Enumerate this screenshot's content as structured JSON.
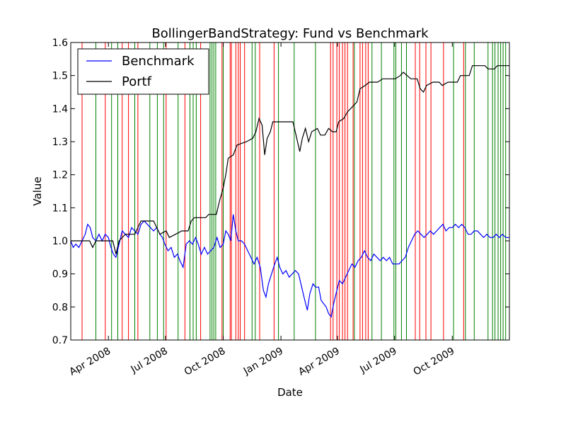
{
  "chart_data": {
    "type": "line",
    "title": "BollingerBandStrategy: Fund vs Benchmark",
    "xlabel": "Date",
    "ylabel": "Value",
    "xlim": [
      "2008-02-01",
      "2009-12-31"
    ],
    "ylim": [
      0.7,
      1.6
    ],
    "grid": false,
    "legend": {
      "placement": "top-left"
    },
    "x_tick_labels": [
      {
        "date": "2008-04-01",
        "label": "Apr 2008"
      },
      {
        "date": "2008-07-01",
        "label": "Jul 2008"
      },
      {
        "date": "2008-10-01",
        "label": "Oct 2008"
      },
      {
        "date": "2009-01-01",
        "label": "Jan 2009"
      },
      {
        "date": "2009-04-01",
        "label": "Apr 2009"
      },
      {
        "date": "2009-07-01",
        "label": "Jul 2009"
      },
      {
        "date": "2009-10-01",
        "label": "Oct 2009"
      }
    ],
    "y_tick_labels": [
      "0.7",
      "0.8",
      "0.9",
      "1.0",
      "1.1",
      "1.2",
      "1.3",
      "1.4",
      "1.5",
      "1.6"
    ],
    "series": [
      {
        "name": "Benchmark",
        "color": "#0000ff",
        "points": [
          [
            "2008-02-01",
            1.0
          ],
          [
            "2008-02-05",
            0.98
          ],
          [
            "2008-02-09",
            0.99
          ],
          [
            "2008-02-14",
            0.98
          ],
          [
            "2008-02-19",
            1.0
          ],
          [
            "2008-02-24",
            1.02
          ],
          [
            "2008-02-28",
            1.05
          ],
          [
            "2008-03-03",
            1.04
          ],
          [
            "2008-03-07",
            1.01
          ],
          [
            "2008-03-12",
            1.0
          ],
          [
            "2008-03-17",
            1.02
          ],
          [
            "2008-03-22",
            1.0
          ],
          [
            "2008-03-27",
            1.02
          ],
          [
            "2008-04-01",
            1.01
          ],
          [
            "2008-04-05",
            0.98
          ],
          [
            "2008-04-09",
            0.96
          ],
          [
            "2008-04-13",
            0.95
          ],
          [
            "2008-04-18",
            0.99
          ],
          [
            "2008-04-23",
            1.03
          ],
          [
            "2008-04-28",
            1.02
          ],
          [
            "2008-05-03",
            1.01
          ],
          [
            "2008-05-08",
            1.04
          ],
          [
            "2008-05-13",
            1.03
          ],
          [
            "2008-05-18",
            1.02
          ],
          [
            "2008-05-23",
            1.05
          ],
          [
            "2008-05-28",
            1.06
          ],
          [
            "2008-06-02",
            1.05
          ],
          [
            "2008-06-07",
            1.04
          ],
          [
            "2008-06-12",
            1.03
          ],
          [
            "2008-06-17",
            1.04
          ],
          [
            "2008-06-22",
            1.02
          ],
          [
            "2008-06-26",
            1.01
          ],
          [
            "2008-06-30",
            0.99
          ],
          [
            "2008-07-05",
            0.97
          ],
          [
            "2008-07-10",
            0.98
          ],
          [
            "2008-07-15",
            0.95
          ],
          [
            "2008-07-20",
            0.96
          ],
          [
            "2008-07-24",
            0.94
          ],
          [
            "2008-07-29",
            0.92
          ],
          [
            "2008-08-03",
            0.99
          ],
          [
            "2008-08-08",
            1.0
          ],
          [
            "2008-08-13",
            0.99
          ],
          [
            "2008-08-18",
            1.01
          ],
          [
            "2008-08-22",
            0.99
          ],
          [
            "2008-08-27",
            0.96
          ],
          [
            "2008-09-01",
            0.98
          ],
          [
            "2008-09-06",
            0.96
          ],
          [
            "2008-09-11",
            0.97
          ],
          [
            "2008-09-16",
            0.98
          ],
          [
            "2008-09-21",
            1.01
          ],
          [
            "2008-09-26",
            0.98
          ],
          [
            "2008-10-01",
            0.99
          ],
          [
            "2008-10-05",
            1.03
          ],
          [
            "2008-10-09",
            1.02
          ],
          [
            "2008-10-13",
            1.0
          ],
          [
            "2008-10-17",
            1.08
          ],
          [
            "2008-10-21",
            1.03
          ],
          [
            "2008-10-25",
            1.0
          ],
          [
            "2008-10-30",
            1.0
          ],
          [
            "2008-11-04",
            0.99
          ],
          [
            "2008-11-09",
            0.97
          ],
          [
            "2008-11-14",
            0.95
          ],
          [
            "2008-11-19",
            0.93
          ],
          [
            "2008-11-24",
            0.95
          ],
          [
            "2008-11-29",
            0.92
          ],
          [
            "2008-12-04",
            0.85
          ],
          [
            "2008-12-08",
            0.83
          ],
          [
            "2008-12-12",
            0.87
          ],
          [
            "2008-12-17",
            0.9
          ],
          [
            "2008-12-22",
            0.93
          ],
          [
            "2008-12-26",
            0.95
          ],
          [
            "2008-12-30",
            0.92
          ],
          [
            "2009-01-04",
            0.9
          ],
          [
            "2009-01-09",
            0.91
          ],
          [
            "2009-01-14",
            0.89
          ],
          [
            "2009-01-19",
            0.9
          ],
          [
            "2009-01-24",
            0.91
          ],
          [
            "2009-01-29",
            0.9
          ],
          [
            "2009-02-03",
            0.86
          ],
          [
            "2009-02-08",
            0.82
          ],
          [
            "2009-02-12",
            0.79
          ],
          [
            "2009-02-16",
            0.84
          ],
          [
            "2009-02-21",
            0.87
          ],
          [
            "2009-02-25",
            0.86
          ],
          [
            "2009-03-02",
            0.86
          ],
          [
            "2009-03-06",
            0.82
          ],
          [
            "2009-03-10",
            0.81
          ],
          [
            "2009-03-14",
            0.8
          ],
          [
            "2009-03-18",
            0.78
          ],
          [
            "2009-03-22",
            0.77
          ],
          [
            "2009-03-26",
            0.81
          ],
          [
            "2009-03-31",
            0.85
          ],
          [
            "2009-04-04",
            0.88
          ],
          [
            "2009-04-09",
            0.87
          ],
          [
            "2009-04-14",
            0.89
          ],
          [
            "2009-04-19",
            0.91
          ],
          [
            "2009-04-24",
            0.93
          ],
          [
            "2009-04-29",
            0.92
          ],
          [
            "2009-05-04",
            0.94
          ],
          [
            "2009-05-09",
            0.95
          ],
          [
            "2009-05-14",
            0.97
          ],
          [
            "2009-05-19",
            0.95
          ],
          [
            "2009-05-24",
            0.94
          ],
          [
            "2009-05-29",
            0.96
          ],
          [
            "2009-06-03",
            0.95
          ],
          [
            "2009-06-08",
            0.94
          ],
          [
            "2009-06-13",
            0.95
          ],
          [
            "2009-06-18",
            0.94
          ],
          [
            "2009-06-23",
            0.95
          ],
          [
            "2009-06-28",
            0.93
          ],
          [
            "2009-07-03",
            0.93
          ],
          [
            "2009-07-08",
            0.93
          ],
          [
            "2009-07-13",
            0.94
          ],
          [
            "2009-07-18",
            0.95
          ],
          [
            "2009-07-23",
            0.98
          ],
          [
            "2009-07-28",
            1.0
          ],
          [
            "2009-08-02",
            1.02
          ],
          [
            "2009-08-07",
            1.03
          ],
          [
            "2009-08-12",
            1.02
          ],
          [
            "2009-08-17",
            1.01
          ],
          [
            "2009-08-22",
            1.02
          ],
          [
            "2009-08-27",
            1.03
          ],
          [
            "2009-09-01",
            1.02
          ],
          [
            "2009-09-06",
            1.03
          ],
          [
            "2009-09-11",
            1.04
          ],
          [
            "2009-09-16",
            1.05
          ],
          [
            "2009-09-21",
            1.03
          ],
          [
            "2009-09-26",
            1.04
          ],
          [
            "2009-10-01",
            1.04
          ],
          [
            "2009-10-06",
            1.05
          ],
          [
            "2009-10-11",
            1.04
          ],
          [
            "2009-10-16",
            1.05
          ],
          [
            "2009-10-21",
            1.04
          ],
          [
            "2009-10-26",
            1.02
          ],
          [
            "2009-10-31",
            1.02
          ],
          [
            "2009-11-05",
            1.03
          ],
          [
            "2009-11-10",
            1.03
          ],
          [
            "2009-11-15",
            1.02
          ],
          [
            "2009-11-20",
            1.01
          ],
          [
            "2009-11-25",
            1.02
          ],
          [
            "2009-11-30",
            1.01
          ],
          [
            "2009-12-05",
            1.01
          ],
          [
            "2009-12-10",
            1.02
          ],
          [
            "2009-12-15",
            1.01
          ],
          [
            "2009-12-20",
            1.02
          ],
          [
            "2009-12-25",
            1.01
          ],
          [
            "2009-12-31",
            1.01
          ]
        ]
      },
      {
        "name": "Portf",
        "color": "#000000",
        "points": [
          [
            "2008-02-01",
            1.0
          ],
          [
            "2008-03-02",
            1.0
          ],
          [
            "2008-03-07",
            0.98
          ],
          [
            "2008-03-12",
            1.0
          ],
          [
            "2008-04-08",
            1.0
          ],
          [
            "2008-04-13",
            0.96
          ],
          [
            "2008-04-18",
            1.0
          ],
          [
            "2008-04-28",
            1.02
          ],
          [
            "2008-05-13",
            1.02
          ],
          [
            "2008-05-18",
            1.04
          ],
          [
            "2008-05-23",
            1.06
          ],
          [
            "2008-06-12",
            1.06
          ],
          [
            "2008-06-17",
            1.04
          ],
          [
            "2008-06-22",
            1.02
          ],
          [
            "2008-07-02",
            1.03
          ],
          [
            "2008-07-07",
            1.01
          ],
          [
            "2008-07-17",
            1.02
          ],
          [
            "2008-07-27",
            1.03
          ],
          [
            "2008-08-06",
            1.03
          ],
          [
            "2008-08-11",
            1.06
          ],
          [
            "2008-08-16",
            1.07
          ],
          [
            "2008-09-03",
            1.07
          ],
          [
            "2008-09-08",
            1.08
          ],
          [
            "2008-09-20",
            1.08
          ],
          [
            "2008-09-25",
            1.12
          ],
          [
            "2008-10-01",
            1.16
          ],
          [
            "2008-10-05",
            1.2
          ],
          [
            "2008-10-09",
            1.25
          ],
          [
            "2008-10-17",
            1.26
          ],
          [
            "2008-10-23",
            1.29
          ],
          [
            "2008-11-07",
            1.3
          ],
          [
            "2008-11-17",
            1.31
          ],
          [
            "2008-11-22",
            1.33
          ],
          [
            "2008-11-27",
            1.37
          ],
          [
            "2008-12-02",
            1.35
          ],
          [
            "2008-12-06",
            1.26
          ],
          [
            "2008-12-10",
            1.31
          ],
          [
            "2008-12-15",
            1.33
          ],
          [
            "2008-12-19",
            1.36
          ],
          [
            "2009-01-20",
            1.36
          ],
          [
            "2009-01-25",
            1.32
          ],
          [
            "2009-01-31",
            1.27
          ],
          [
            "2009-02-04",
            1.31
          ],
          [
            "2009-02-09",
            1.34
          ],
          [
            "2009-02-14",
            1.3
          ],
          [
            "2009-02-19",
            1.33
          ],
          [
            "2009-02-28",
            1.34
          ],
          [
            "2009-03-05",
            1.32
          ],
          [
            "2009-03-12",
            1.32
          ],
          [
            "2009-03-18",
            1.34
          ],
          [
            "2009-03-24",
            1.33
          ],
          [
            "2009-03-30",
            1.33
          ],
          [
            "2009-04-03",
            1.36
          ],
          [
            "2009-04-11",
            1.37
          ],
          [
            "2009-04-17",
            1.39
          ],
          [
            "2009-04-27",
            1.41
          ],
          [
            "2009-05-02",
            1.42
          ],
          [
            "2009-05-07",
            1.46
          ],
          [
            "2009-05-15",
            1.47
          ],
          [
            "2009-05-22",
            1.48
          ],
          [
            "2009-06-04",
            1.48
          ],
          [
            "2009-06-12",
            1.49
          ],
          [
            "2009-06-22",
            1.49
          ],
          [
            "2009-07-02",
            1.49
          ],
          [
            "2009-07-10",
            1.5
          ],
          [
            "2009-07-15",
            1.51
          ],
          [
            "2009-07-21",
            1.5
          ],
          [
            "2009-07-27",
            1.49
          ],
          [
            "2009-08-06",
            1.49
          ],
          [
            "2009-08-11",
            1.46
          ],
          [
            "2009-08-16",
            1.45
          ],
          [
            "2009-08-21",
            1.47
          ],
          [
            "2009-08-31",
            1.48
          ],
          [
            "2009-09-10",
            1.48
          ],
          [
            "2009-09-15",
            1.47
          ],
          [
            "2009-09-24",
            1.48
          ],
          [
            "2009-10-09",
            1.48
          ],
          [
            "2009-10-14",
            1.5
          ],
          [
            "2009-10-28",
            1.5
          ],
          [
            "2009-11-02",
            1.53
          ],
          [
            "2009-11-22",
            1.53
          ],
          [
            "2009-11-27",
            1.52
          ],
          [
            "2009-12-07",
            1.52
          ],
          [
            "2009-12-12",
            1.53
          ],
          [
            "2009-12-31",
            1.53
          ]
        ]
      }
    ],
    "signals": {
      "buy_color": "#008000",
      "sell_color": "#ff0000",
      "buy_dates": [
        "2008-03-12",
        "2008-04-06",
        "2008-04-16",
        "2008-05-13",
        "2008-06-06",
        "2008-06-18",
        "2008-06-28",
        "2008-07-21",
        "2008-08-09",
        "2008-08-14",
        "2008-08-19",
        "2008-09-10",
        "2008-09-13",
        "2008-09-16",
        "2008-09-19",
        "2008-10-01",
        "2008-11-16",
        "2008-11-21",
        "2008-12-28",
        "2009-01-22",
        "2009-02-25",
        "2009-04-28",
        "2009-05-26",
        "2009-06-10",
        "2009-06-30",
        "2009-07-03",
        "2009-07-12",
        "2009-07-20",
        "2009-10-03",
        "2009-10-22",
        "2009-11-05",
        "2009-11-27",
        "2009-12-04",
        "2009-12-08",
        "2009-12-13",
        "2009-12-17",
        "2009-12-21",
        "2009-12-25"
      ],
      "sell_dates": [
        "2008-02-19",
        "2008-03-27",
        "2008-04-23",
        "2008-05-03",
        "2008-05-18",
        "2008-07-02",
        "2008-08-01",
        "2008-08-26",
        "2008-09-29",
        "2008-10-12",
        "2008-10-14",
        "2008-10-21",
        "2008-10-25",
        "2008-10-28",
        "2008-11-04",
        "2008-11-28",
        "2008-12-21",
        "2009-03-21",
        "2009-03-25",
        "2009-03-31",
        "2009-04-04",
        "2009-04-09",
        "2009-04-13",
        "2009-04-17",
        "2009-04-26",
        "2009-05-07",
        "2009-05-11",
        "2009-05-16",
        "2009-05-20",
        "2009-08-03",
        "2009-08-10",
        "2009-08-20",
        "2009-08-28",
        "2009-09-17",
        "2009-10-19"
      ]
    }
  }
}
